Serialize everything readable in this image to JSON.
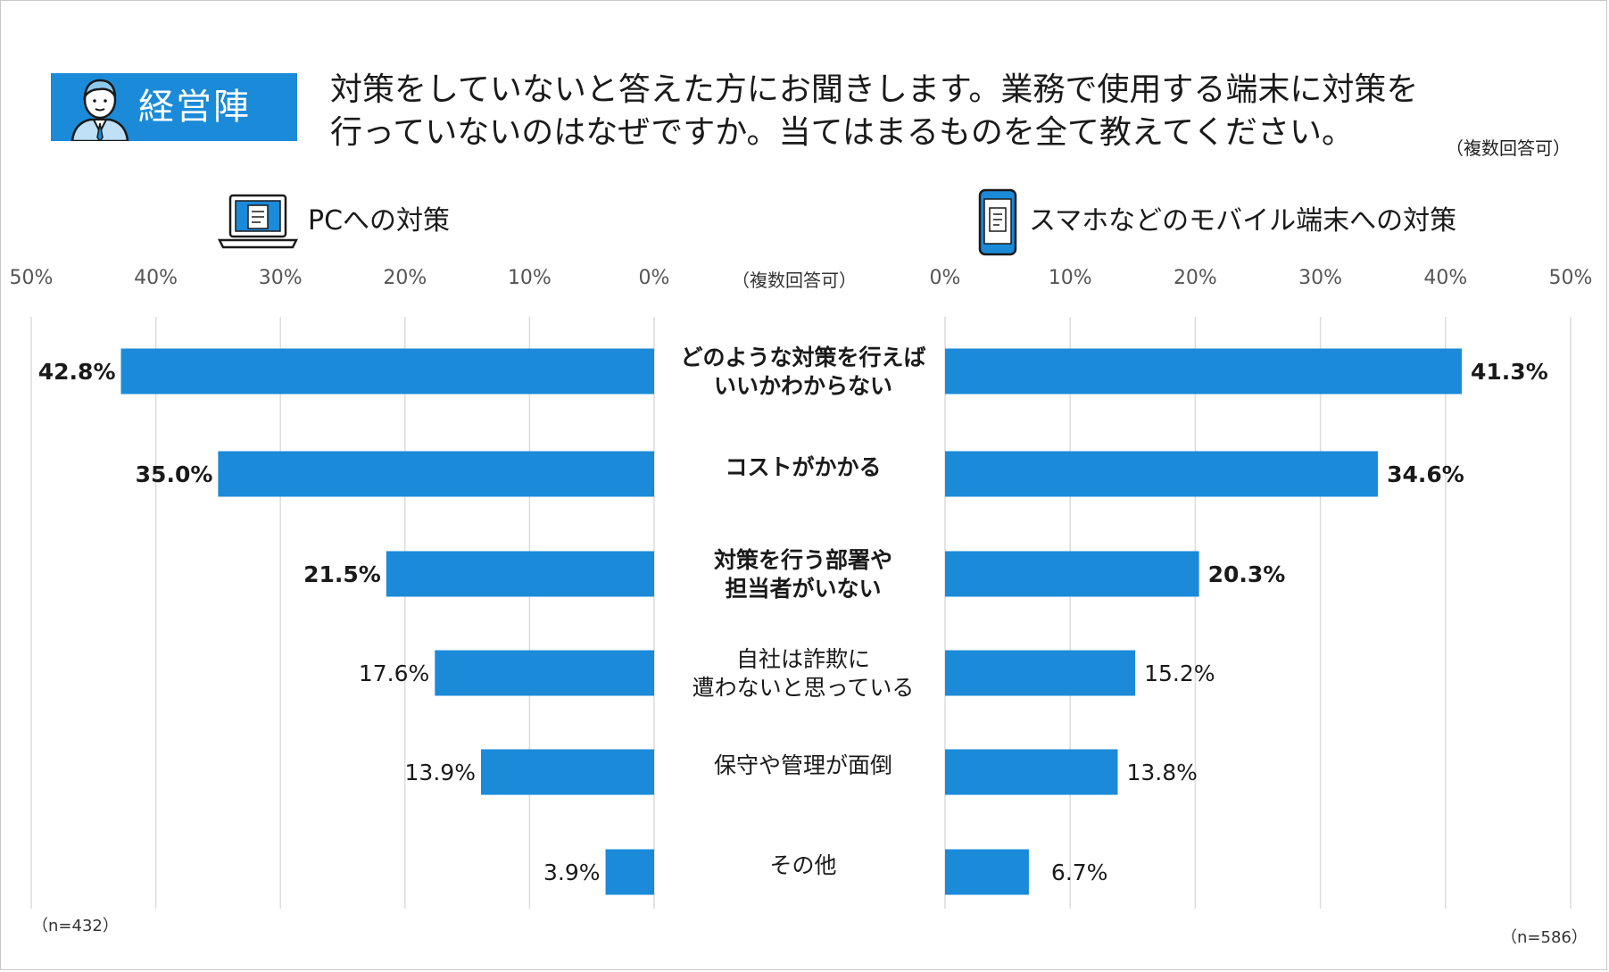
{
  "header": {
    "badge_label": "経営陣",
    "question_line1": "対策をしていないと答えた方にお聞きします。業務で使用する端末に対策を",
    "question_line2": "行っていないのはなぜですか。当てはまるものを全て教えてください。",
    "question_note": "（複数回答可）"
  },
  "colors": {
    "bar": "#1a8ad9",
    "grid": "#dcdcdc",
    "badge": "#1a8ad9"
  },
  "chart_data": {
    "type": "bar",
    "orientation": "horizontal-butterfly",
    "categories": [
      [
        "どのような対策を行えば",
        "いいかわからない"
      ],
      [
        "コストがかかる"
      ],
      [
        "対策を行う部署や",
        "担当者がいない"
      ],
      [
        "自社は詐欺に",
        "遭わないと思っている"
      ],
      [
        "保守や管理が面倒"
      ],
      [
        "その他"
      ]
    ],
    "category_bold": [
      true,
      true,
      true,
      false,
      false,
      false
    ],
    "center_note": "（複数回答可）",
    "series": [
      {
        "name": "PCへの対策",
        "side": "left",
        "values": [
          42.8,
          35.0,
          21.5,
          17.6,
          13.9,
          3.9
        ],
        "labels": [
          "42.8%",
          "35.0%",
          "21.5%",
          "17.6%",
          "13.9%",
          "3.9%"
        ],
        "ticks": [
          "50%",
          "40%",
          "30%",
          "20%",
          "10%",
          "0%"
        ],
        "n_label": "（n=432）"
      },
      {
        "name": "スマホなどのモバイル端末への対策",
        "side": "right",
        "values": [
          41.3,
          34.6,
          20.3,
          15.2,
          13.8,
          6.7
        ],
        "labels": [
          "41.3%",
          "34.6%",
          "20.3%",
          "15.2%",
          "13.8%",
          "6.7%"
        ],
        "ticks": [
          "0%",
          "10%",
          "20%",
          "30%",
          "40%",
          "50%"
        ],
        "n_label": "（n=586）"
      }
    ],
    "xlim": [
      0,
      50
    ]
  }
}
